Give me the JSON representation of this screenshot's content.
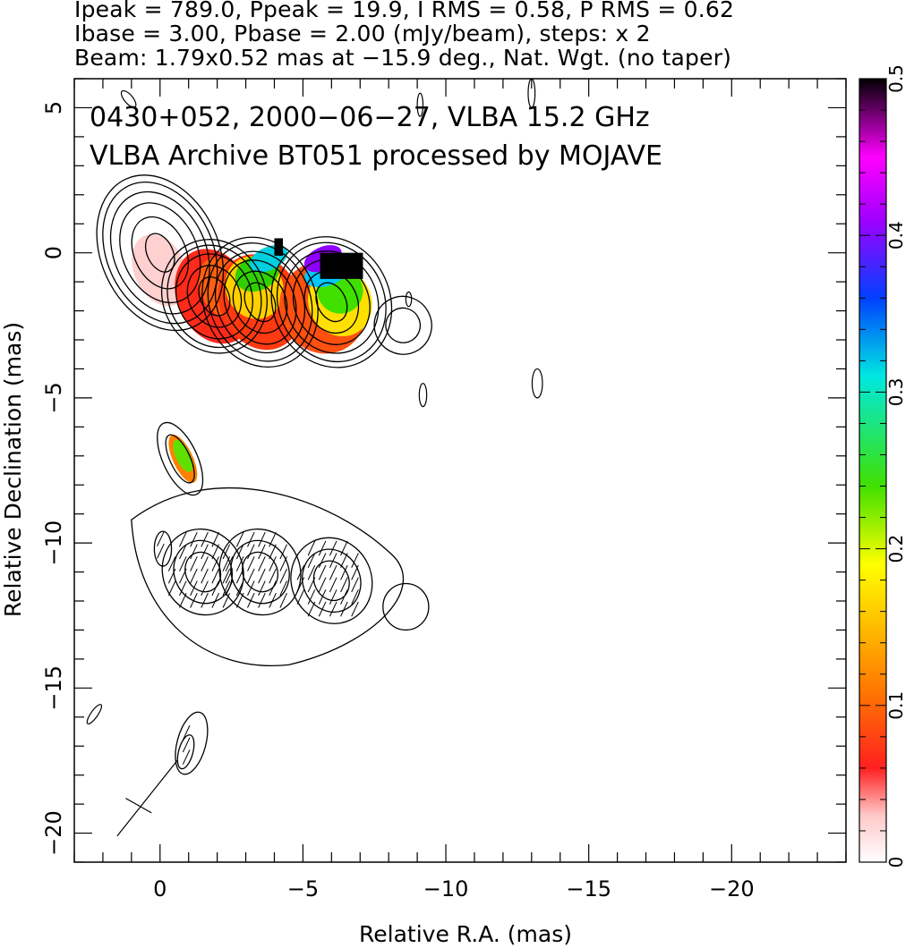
{
  "header": {
    "line1": "Ipeak = 789.0, Ppeak = 19.9, I RMS = 0.58, P RMS = 0.62",
    "line2": "Ibase = 3.00, Pbase = 2.00 (mJy/beam), steps: x 2",
    "line3": "Beam: 1.79x0.52 mas at −15.9 deg., Nat. Wgt. (no taper)"
  },
  "annotations": {
    "line1": "0430+052, 2000−06−27, VLBA 15.2 GHz",
    "line2": "VLBA Archive BT051 processed by MOJAVE"
  },
  "axes": {
    "xlabel": "Relative R.A. (mas)",
    "ylabel": "Relative Declination (mas)"
  },
  "chart_data": {
    "type": "heatmap",
    "title": "0430+052, 2000-06-27, VLBA 15.2 GHz",
    "subtitle": "VLBA Archive BT051 processed by MOJAVE",
    "xlabel": "Relative R.A. (mas)",
    "ylabel": "Relative Declination (mas)",
    "xlim": [
      3,
      -24
    ],
    "ylim": [
      -21,
      6
    ],
    "x_ticks": [
      "0",
      "−5",
      "−10",
      "−15",
      "−20"
    ],
    "x_tick_values": [
      0,
      -5,
      -10,
      -15,
      -20
    ],
    "y_ticks": [
      "5",
      "0",
      "−5",
      "−10",
      "−15",
      "−20"
    ],
    "y_tick_values": [
      5,
      0,
      -5,
      -10,
      -15,
      -20
    ],
    "colorbar": {
      "range": [
        0,
        0.5
      ],
      "ticks": [
        "0",
        "0.1",
        "0.2",
        "0.3",
        "0.4",
        "0.5"
      ],
      "tick_values": [
        0,
        0.1,
        0.2,
        0.3,
        0.4,
        0.5
      ],
      "colors": [
        "#ffffff",
        "#ffb0b0",
        "#ff2020",
        "#ff8000",
        "#ffff00",
        "#40e000",
        "#00e0e0",
        "#0040ff",
        "#ff00ff",
        "#000000"
      ]
    },
    "upper_panel": {
      "description": "total intensity contours with fractional polarization color",
      "components": [
        {
          "x": 0.0,
          "y": 0.0
        },
        {
          "x": -1.9,
          "y": -1.5
        },
        {
          "x": -3.5,
          "y": -1.7
        },
        {
          "x": -6.0,
          "y": -1.7
        },
        {
          "x": -8.5,
          "y": -2.5
        }
      ]
    },
    "lower_panel": {
      "description": "polarized intensity contours with EVPA ticks",
      "offset_dec": -11,
      "components": [
        {
          "x": -0.7,
          "y": -7.1
        },
        {
          "x": -1.5,
          "y": -11.0
        },
        {
          "x": -3.5,
          "y": -11.0
        },
        {
          "x": -6.0,
          "y": -11.3
        }
      ]
    }
  }
}
